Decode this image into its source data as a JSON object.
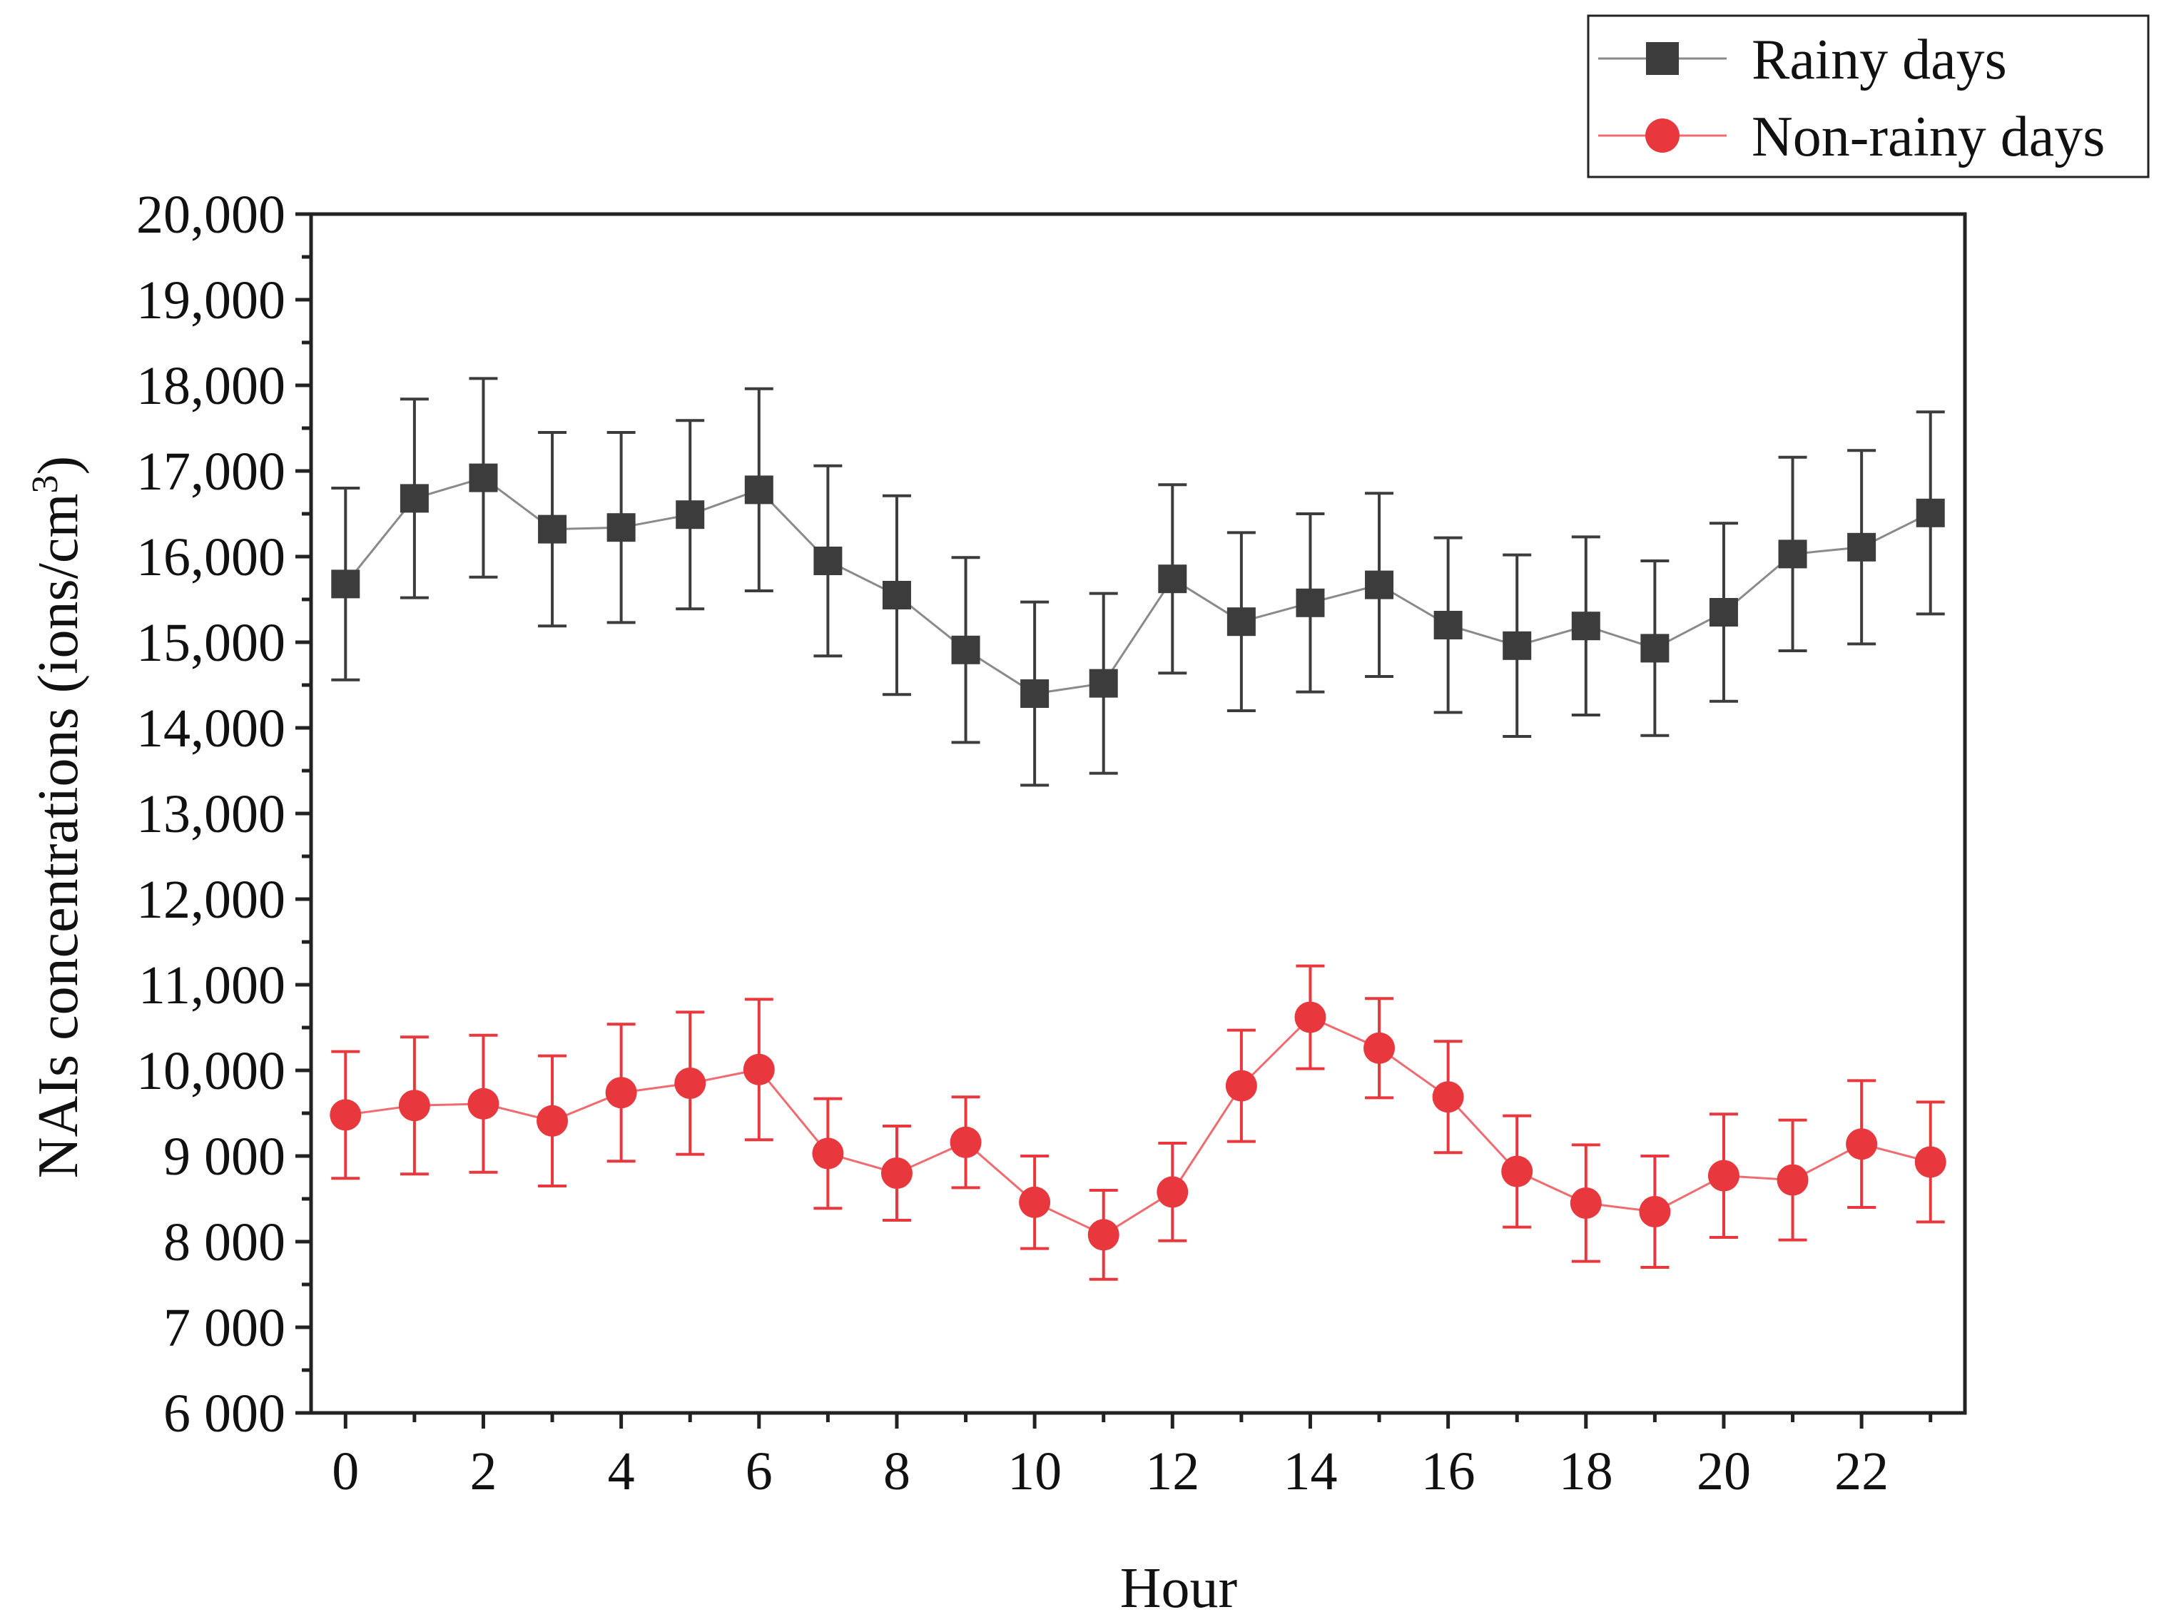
{
  "chart_data": {
    "type": "line",
    "title": "",
    "xlabel": "Hour",
    "ylabel": "NAIs concentrations (ions/cm",
    "ylabel_superscript": "3",
    "ylabel_close": ")",
    "xlim": [
      -0.5,
      23.5
    ],
    "ylim": [
      6000,
      20000
    ],
    "x_ticks": [
      0,
      2,
      4,
      6,
      8,
      10,
      12,
      14,
      16,
      18,
      20,
      22
    ],
    "x_tick_labels": [
      "0",
      "2",
      "4",
      "6",
      "8",
      "10",
      "12",
      "14",
      "16",
      "18",
      "20",
      "22"
    ],
    "y_ticks": [
      6000,
      7000,
      8000,
      9000,
      10000,
      11000,
      12000,
      13000,
      14000,
      15000,
      16000,
      17000,
      18000,
      19000,
      20000
    ],
    "y_tick_labels": [
      "6 000",
      "7 000",
      "8 000",
      "9 000",
      "10,000",
      "11,000",
      "12,000",
      "13,000",
      "14,000",
      "15,000",
      "16,000",
      "17,000",
      "18,000",
      "19,000",
      "20,000"
    ],
    "legend_position": "top-right, outside plot",
    "x": [
      0,
      1,
      2,
      3,
      4,
      5,
      6,
      7,
      8,
      9,
      10,
      11,
      12,
      13,
      14,
      15,
      16,
      17,
      18,
      19,
      20,
      21,
      22,
      23
    ],
    "series": [
      {
        "name": "Rainy days",
        "marker": "square",
        "color": "#3c3c3c",
        "line_color": "#8a8a8a",
        "values": [
          15680,
          16680,
          16920,
          16320,
          16340,
          16490,
          16780,
          15950,
          15550,
          14910,
          14400,
          14520,
          15740,
          15240,
          15460,
          15670,
          15200,
          14960,
          15190,
          14930,
          15350,
          16030,
          16110,
          16510
        ],
        "error": [
          1120,
          1160,
          1160,
          1130,
          1110,
          1100,
          1180,
          1110,
          1160,
          1080,
          1070,
          1050,
          1100,
          1040,
          1040,
          1070,
          1020,
          1060,
          1040,
          1020,
          1040,
          1130,
          1130,
          1180
        ]
      },
      {
        "name": "Non-rainy days",
        "marker": "circle",
        "color": "#e8373d",
        "line_color": "#ef6b6f",
        "values": [
          9480,
          9590,
          9610,
          9410,
          9740,
          9850,
          10010,
          9030,
          8800,
          9160,
          8460,
          8080,
          8580,
          9820,
          10620,
          10260,
          9690,
          8820,
          8450,
          8350,
          8770,
          8720,
          9140,
          8930
        ],
        "error": [
          740,
          800,
          800,
          760,
          800,
          830,
          820,
          640,
          550,
          530,
          540,
          520,
          570,
          650,
          600,
          580,
          650,
          650,
          680,
          650,
          720,
          700,
          740,
          700
        ]
      }
    ]
  }
}
